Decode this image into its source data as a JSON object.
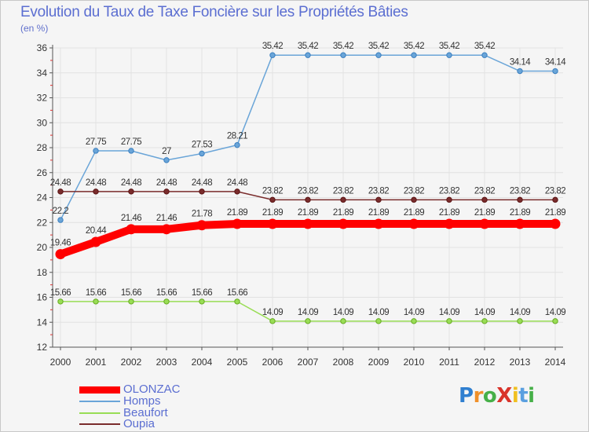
{
  "title": "Evolution du Taux de Taxe Foncière sur les Propriétés Bâties",
  "subtitle": "(en %)",
  "logo": {
    "text": "ProXiti",
    "letters": [
      "P",
      "r",
      "o",
      "X",
      "i",
      "t",
      "i"
    ],
    "colors": [
      "#2f7fd0",
      "#f0902a",
      "#46b048",
      "#d9342b",
      "#f0c020",
      "#5a9fe0",
      "#46b048"
    ]
  },
  "legend": [
    {
      "name": "OLONZAC",
      "color": "#ff0000"
    },
    {
      "name": "Homps",
      "color": "#6aa5d8"
    },
    {
      "name": "Beaufort",
      "color": "#99dd55"
    },
    {
      "name": "Oupia",
      "color": "#7a2c2c"
    }
  ],
  "chart_data": {
    "type": "line",
    "title": "Evolution du Taux de Taxe Foncière sur les Propriétés Bâties",
    "ylabel": "(en %)",
    "xlabel": "",
    "ylim": [
      12,
      36
    ],
    "yticks": [
      12,
      14,
      16,
      18,
      20,
      22,
      24,
      26,
      28,
      30,
      32,
      34,
      36
    ],
    "x": [
      "2000",
      "2001",
      "2002",
      "2003",
      "2004",
      "2005",
      "2006",
      "2007",
      "2008",
      "2009",
      "2010",
      "2011",
      "2012",
      "2013",
      "2014"
    ],
    "grid": true,
    "series": [
      {
        "name": "OLONZAC",
        "color": "#ff0000",
        "values": [
          19.46,
          20.44,
          21.46,
          21.46,
          21.78,
          21.89,
          21.89,
          21.89,
          21.89,
          21.89,
          21.89,
          21.89,
          21.89,
          21.89,
          21.89
        ],
        "labels": [
          "19.46",
          "20.44",
          "21.46",
          "21.46",
          "21.78",
          "21.89",
          "21.89",
          "21.89",
          "21.89",
          "21.89",
          "21.89",
          "21.89",
          "21.89",
          "21.89",
          "21.89"
        ]
      },
      {
        "name": "Homps",
        "color": "#6aa5d8",
        "values": [
          22.2,
          27.75,
          27.75,
          27,
          27.53,
          28.21,
          35.42,
          35.42,
          35.42,
          35.42,
          35.42,
          35.42,
          35.42,
          34.14,
          34.14
        ],
        "labels": [
          "22.2",
          "27.75",
          "27.75",
          "27",
          "27.53",
          "28.21",
          "35.42",
          "35.42",
          "35.42",
          "35.42",
          "35.42",
          "35.42",
          "35.42",
          "34.14",
          "34.14"
        ]
      },
      {
        "name": "Beaufort",
        "color": "#99dd55",
        "values": [
          15.66,
          15.66,
          15.66,
          15.66,
          15.66,
          15.66,
          14.09,
          14.09,
          14.09,
          14.09,
          14.09,
          14.09,
          14.09,
          14.09,
          14.09
        ],
        "labels": [
          "15.66",
          "15.66",
          "15.66",
          "15.66",
          "15.66",
          "15.66",
          "14.09",
          "14.09",
          "14.09",
          "14.09",
          "14.09",
          "14.09",
          "14.09",
          "14.09",
          "14.09"
        ]
      },
      {
        "name": "Oupia",
        "color": "#7a2c2c",
        "values": [
          24.48,
          24.48,
          24.48,
          24.48,
          24.48,
          24.48,
          23.82,
          23.82,
          23.82,
          23.82,
          23.82,
          23.82,
          23.82,
          23.82,
          23.82
        ],
        "labels": [
          "24.48",
          "24.48",
          "24.48",
          "24.48",
          "24.48",
          "24.48",
          "23.82",
          "23.82",
          "23.82",
          "23.82",
          "23.82",
          "23.82",
          "23.82",
          "23.82",
          "23.82"
        ]
      }
    ]
  }
}
